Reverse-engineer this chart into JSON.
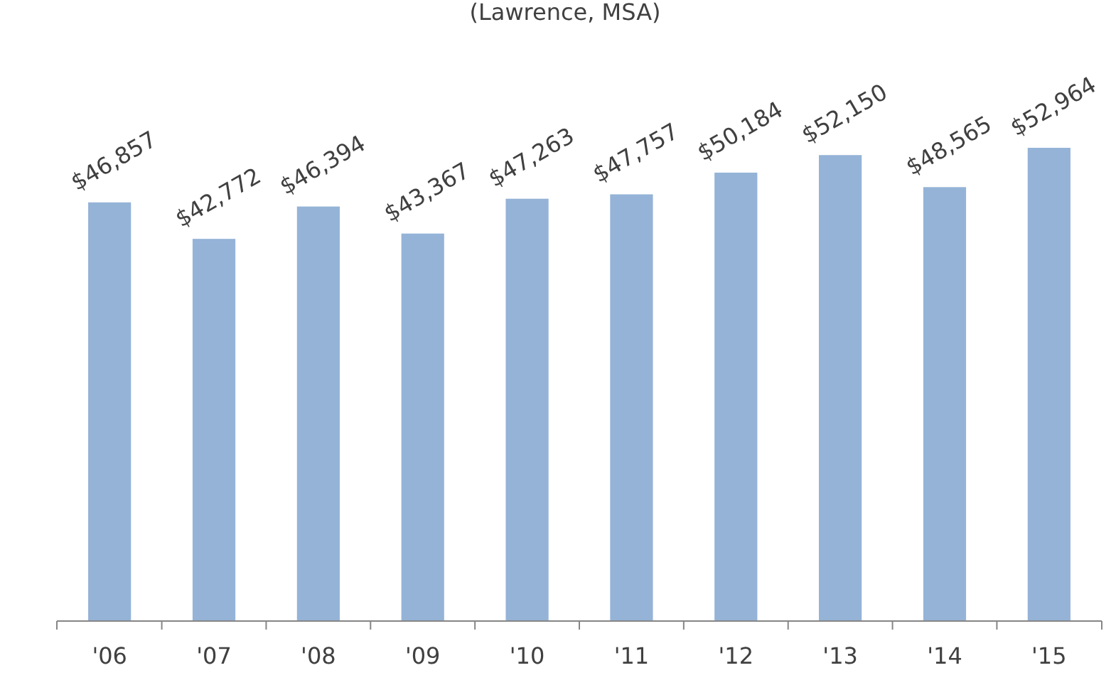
{
  "chart_data": {
    "type": "bar",
    "title": "(Lawrence, MSA)",
    "categories": [
      "'06",
      "'07",
      "'08",
      "'09",
      "'10",
      "'11",
      "'12",
      "'13",
      "'14",
      "'15"
    ],
    "values": [
      46857,
      42772,
      46394,
      43367,
      47263,
      47757,
      50184,
      52150,
      48565,
      52964
    ],
    "color": "#95b3d7",
    "value_labels": [
      "$46,857",
      "$42,772",
      "$46,394",
      "$43,367",
      "$47,263",
      "$47,757",
      "$50,184",
      "$52,150",
      "$48,565",
      "$52,964"
    ],
    "tick_labels": "x"
  }
}
